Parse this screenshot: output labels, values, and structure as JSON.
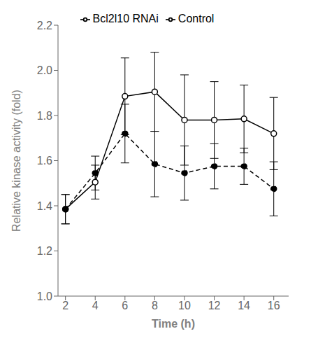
{
  "chart_data": {
    "type": "line",
    "x_label": "Time (h)",
    "y_label": "Relative kinase activity (fold)",
    "x": [
      2,
      4,
      6,
      8,
      10,
      12,
      14,
      16
    ],
    "series": [
      {
        "name": "Control",
        "color": "#000000",
        "line_style": "solid",
        "marker": "open circle",
        "values": [
          1.385,
          1.505,
          1.885,
          1.905,
          1.78,
          1.78,
          1.785,
          1.72
        ],
        "errors": [
          0.065,
          0.075,
          0.17,
          0.175,
          0.2,
          0.17,
          0.15,
          0.16
        ]
      },
      {
        "name": "Bcl2l10 RNAi",
        "color": "#000000",
        "line_style": "dashed",
        "marker": "filled circle",
        "values": [
          1.385,
          1.545,
          1.72,
          1.585,
          1.545,
          1.575,
          1.575,
          1.475
        ],
        "errors": [
          0.065,
          0.075,
          0.13,
          0.145,
          0.12,
          0.1,
          0.08,
          0.12
        ]
      }
    ],
    "xlim": [
      1.5,
      17
    ],
    "xticks": [
      2,
      4,
      6,
      8,
      10,
      12,
      14,
      16
    ],
    "ylim": [
      1.0,
      2.2
    ],
    "yticks": [
      {
        "value": 1.0,
        "label": "1.0"
      },
      {
        "value": 1.2,
        "label": "1.2"
      },
      {
        "value": 1.4,
        "label": "1.4"
      },
      {
        "value": 1.6,
        "label": "1.6"
      },
      {
        "value": 1.8,
        "label": "1.8"
      },
      {
        "value": 2.0,
        "label": "2.0"
      },
      {
        "value": 2.2,
        "label": "2.2"
      }
    ],
    "grid": false,
    "legend": "top"
  }
}
